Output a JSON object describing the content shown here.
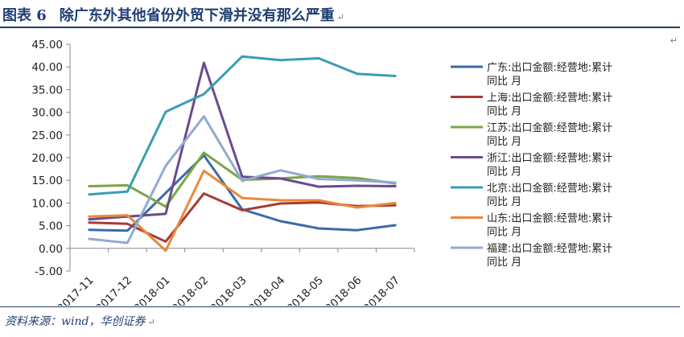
{
  "header": {
    "figure_number": "图表 6",
    "title": "除广东外其他省份外贸下滑并没有那么严重",
    "end_mark": "↵"
  },
  "source": {
    "text": "资料来源：wind，华创证券",
    "end_mark": "↵"
  },
  "corner_mark": "↵",
  "chart_data": {
    "type": "line",
    "title": "",
    "xlabel": "",
    "ylabel": "",
    "categories": [
      "2017-11",
      "2017-12",
      "2018-01",
      "2018-02",
      "2018-03",
      "2018-04",
      "2018-05",
      "2018-06",
      "2018-07"
    ],
    "ylim": [
      -5,
      45
    ],
    "yticks": [
      "-5.00",
      "0.00",
      "5.00",
      "10.00",
      "15.00",
      "20.00",
      "25.00",
      "30.00",
      "35.00",
      "40.00",
      "45.00"
    ],
    "grid": false,
    "legend_position": "right",
    "series": [
      {
        "name": "广东:出口金额:经营地:累计同比 月",
        "color": "#3c6aa6",
        "values": [
          4.1,
          3.9,
          null,
          20.5,
          8.6,
          6.0,
          4.4,
          4.0,
          5.1
        ]
      },
      {
        "name": "上海:出口金额:经营地:累计同比 月",
        "color": "#a83a34",
        "values": [
          5.7,
          5.4,
          1.5,
          12.1,
          8.4,
          9.9,
          10.1,
          9.3,
          9.5
        ]
      },
      {
        "name": "江苏:出口金额:经营地:累计同比 月",
        "color": "#7aa646",
        "values": [
          13.7,
          13.9,
          9.2,
          21.1,
          15.1,
          15.4,
          15.9,
          15.5,
          14.3
        ]
      },
      {
        "name": "浙江:出口金额:经营地:累计同比 月",
        "color": "#6a4a8f",
        "values": [
          6.4,
          7.0,
          7.6,
          40.9,
          15.8,
          15.4,
          13.6,
          13.8,
          13.7
        ]
      },
      {
        "name": "北京:出口金额:经营地:累计同比 月",
        "color": "#3c9db5",
        "values": [
          11.9,
          12.5,
          30.1,
          34.0,
          42.3,
          41.5,
          41.9,
          38.5,
          38.0
        ]
      },
      {
        "name": "山东:出口金额:经营地:累计同比 月",
        "color": "#e8893a",
        "values": [
          7.0,
          7.3,
          -0.5,
          17.1,
          11.1,
          10.6,
          10.6,
          9.0,
          10.0
        ]
      },
      {
        "name": "福建:出口金额:经营地:累计同比 月",
        "color": "#93a9d1",
        "values": [
          2.1,
          1.2,
          18.2,
          29.1,
          14.9,
          17.2,
          15.3,
          15.0,
          14.5
        ]
      }
    ]
  }
}
